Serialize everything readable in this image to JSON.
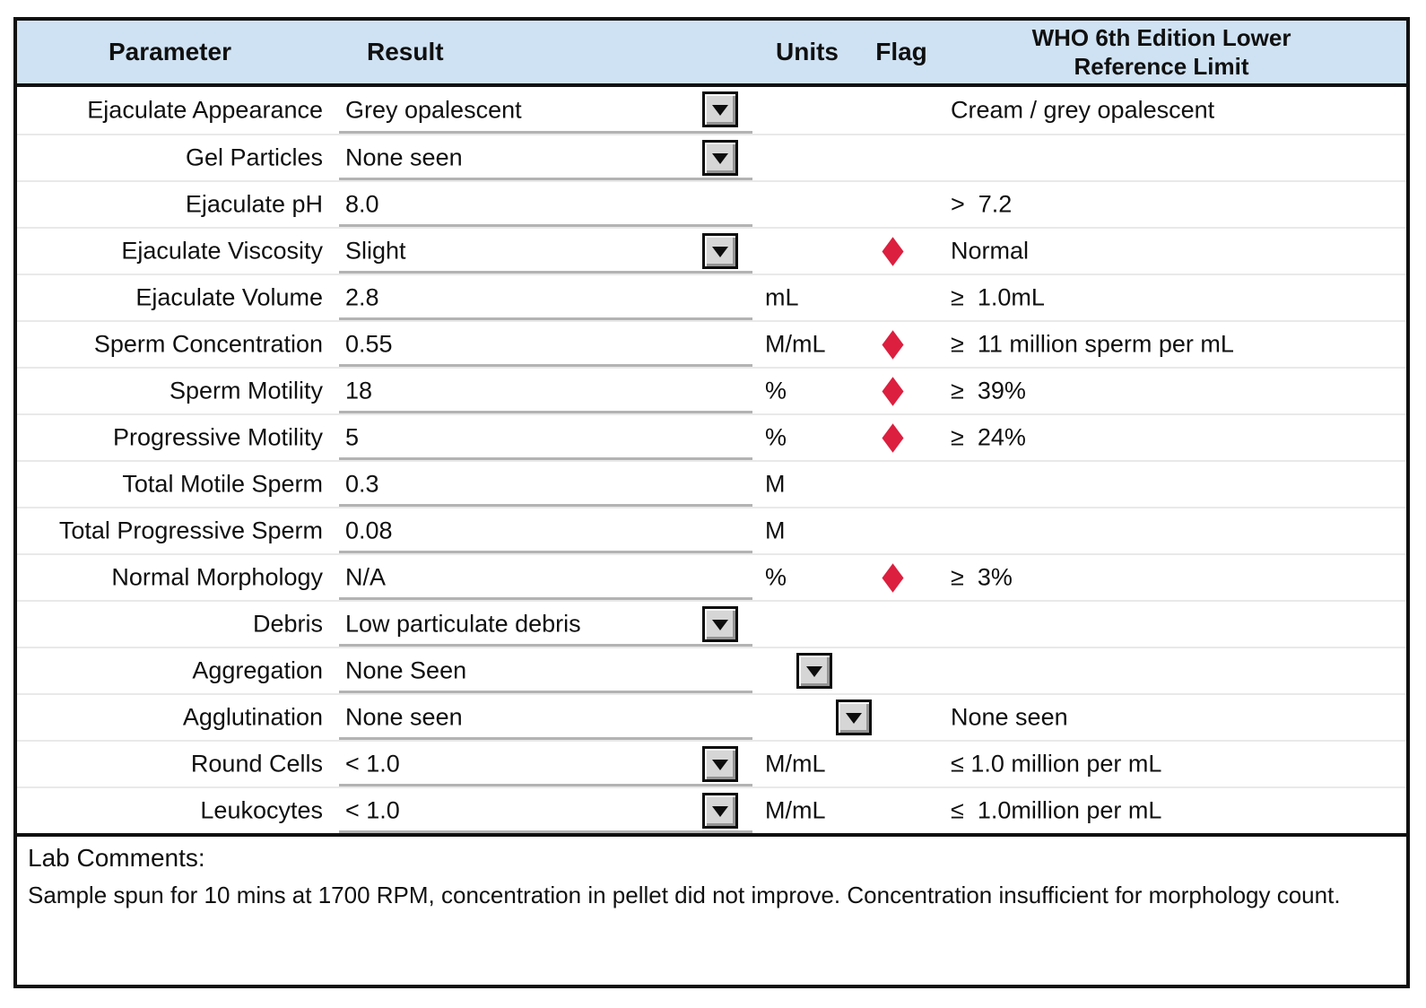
{
  "header": {
    "parameter": "Parameter",
    "result": "Result",
    "units": "Units",
    "flag": "Flag",
    "who": "WHO 6th Edition Lower\nReference Limit"
  },
  "colors": {
    "header-bg": "#cfe2f3",
    "flag-red": "#dc1f3f",
    "border": "#101010",
    "underline": "#b3b3b3",
    "divider": "#e9e9e9"
  },
  "icons": {
    "dropdown": "chevron-down-icon",
    "flag": "red-diamond-icon"
  },
  "rows": [
    {
      "param": "Ejaculate Appearance",
      "result": "Grey opalescent",
      "dropdown": "result",
      "units": "",
      "flag": false,
      "ref": "Cream / grey opalescent"
    },
    {
      "param": "Gel Particles",
      "result": "None seen",
      "dropdown": "result",
      "units": "",
      "flag": false,
      "ref": ""
    },
    {
      "param": "Ejaculate pH",
      "result": "8.0",
      "dropdown": "",
      "units": "",
      "flag": false,
      "ref": ">  7.2"
    },
    {
      "param": "Ejaculate Viscosity",
      "result": "Slight",
      "dropdown": "result",
      "units": "",
      "flag": true,
      "ref": "Normal"
    },
    {
      "param": "Ejaculate Volume",
      "result": "2.8",
      "dropdown": "",
      "units": "mL",
      "flag": false,
      "ref": "≥  1.0mL"
    },
    {
      "param": "Sperm Concentration",
      "result": "0.55",
      "dropdown": "",
      "units": "M/mL",
      "flag": true,
      "ref": "≥  11 million sperm per mL"
    },
    {
      "param": "Sperm Motility",
      "result": "18",
      "dropdown": "",
      "units": "%",
      "flag": true,
      "ref": "≥  39%"
    },
    {
      "param": "Progressive Motility",
      "result": "5",
      "dropdown": "",
      "units": "%",
      "flag": true,
      "ref": "≥  24%"
    },
    {
      "param": "Total Motile Sperm",
      "result": "0.3",
      "dropdown": "",
      "units": "M",
      "flag": false,
      "ref": ""
    },
    {
      "param": "Total Progressive Sperm",
      "result": "0.08",
      "dropdown": "",
      "units": "M",
      "flag": false,
      "ref": ""
    },
    {
      "param": "Normal Morphology",
      "result": "N/A",
      "dropdown": "",
      "units": "%",
      "flag": true,
      "ref": "≥  3%"
    },
    {
      "param": "Debris",
      "result": "Low particulate debris",
      "dropdown": "result",
      "units": "",
      "flag": false,
      "ref": ""
    },
    {
      "param": "Aggregation",
      "result": "None Seen",
      "dropdown": "units",
      "units": "",
      "flag": false,
      "ref": ""
    },
    {
      "param": "Agglutination",
      "result": "None seen",
      "dropdown": "flag",
      "units": "",
      "flag": false,
      "ref": "None seen"
    },
    {
      "param": "Round Cells",
      "result": "< 1.0",
      "dropdown": "result",
      "units": "M/mL",
      "flag": false,
      "ref": "≤ 1.0 million per mL"
    },
    {
      "param": "Leukocytes",
      "result": "< 1.0",
      "dropdown": "result",
      "units": "M/mL",
      "flag": false,
      "ref": "≤  1.0million per mL"
    }
  ],
  "comments": {
    "label": "Lab Comments:",
    "text": "Sample spun for 10 mins at 1700 RPM, concentration in pellet did not improve. Concentration insufficient for morphology count."
  }
}
